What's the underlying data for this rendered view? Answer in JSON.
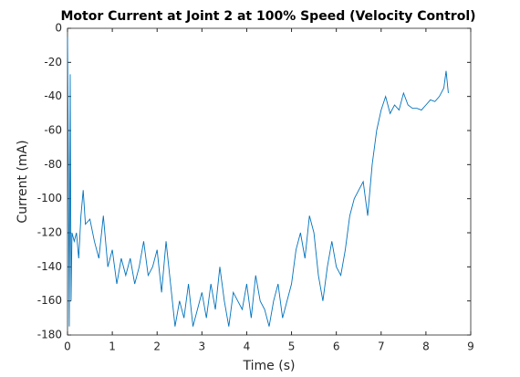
{
  "chart_data": {
    "type": "line",
    "title": "Motor Current at Joint 2 at 100% Speed (Velocity Control)",
    "x_label": "Time (s)",
    "y_label": "Current (mA)",
    "xlim": [
      0,
      9
    ],
    "xticks": [
      0,
      1,
      2,
      3,
      4,
      5,
      6,
      7,
      8,
      9
    ],
    "ylim": [
      -180,
      0
    ],
    "yticks": [
      -180,
      -160,
      -140,
      -120,
      -100,
      -80,
      -60,
      -40,
      -20,
      0
    ],
    "series": [
      {
        "name": "Current",
        "color": "#0072bd",
        "x": [
          0,
          0.02,
          0.04,
          0.06,
          0.08,
          0.1,
          0.15,
          0.2,
          0.25,
          0.3,
          0.35,
          0.4,
          0.5,
          0.6,
          0.7,
          0.8,
          0.9,
          1.0,
          1.1,
          1.2,
          1.3,
          1.4,
          1.5,
          1.6,
          1.7,
          1.8,
          1.9,
          2.0,
          2.1,
          2.2,
          2.3,
          2.4,
          2.5,
          2.6,
          2.7,
          2.8,
          2.9,
          3.0,
          3.1,
          3.2,
          3.3,
          3.4,
          3.5,
          3.6,
          3.7,
          3.8,
          3.9,
          4.0,
          4.1,
          4.2,
          4.3,
          4.4,
          4.5,
          4.6,
          4.7,
          4.8,
          4.9,
          5.0,
          5.1,
          5.2,
          5.3,
          5.4,
          5.5,
          5.6,
          5.7,
          5.8,
          5.9,
          6.0,
          6.1,
          6.2,
          6.3,
          6.4,
          6.5,
          6.6,
          6.7,
          6.8,
          6.9,
          7.0,
          7.1,
          7.2,
          7.3,
          7.4,
          7.5,
          7.6,
          7.7,
          7.8,
          7.9,
          8.0,
          8.1,
          8.2,
          8.3,
          8.4,
          8.45,
          8.5
        ],
        "values": [
          -5,
          -80,
          -175,
          -27,
          -160,
          -120,
          -125,
          -120,
          -135,
          -110,
          -95,
          -115,
          -112,
          -125,
          -135,
          -110,
          -140,
          -130,
          -150,
          -135,
          -145,
          -135,
          -150,
          -140,
          -125,
          -145,
          -140,
          -130,
          -155,
          -125,
          -150,
          -175,
          -160,
          -170,
          -150,
          -175,
          -165,
          -155,
          -170,
          -150,
          -165,
          -140,
          -160,
          -175,
          -155,
          -160,
          -165,
          -150,
          -170,
          -145,
          -160,
          -165,
          -175,
          -160,
          -150,
          -170,
          -160,
          -150,
          -130,
          -120,
          -135,
          -110,
          -120,
          -145,
          -160,
          -140,
          -125,
          -140,
          -145,
          -130,
          -110,
          -100,
          -95,
          -90,
          -110,
          -80,
          -60,
          -48,
          -40,
          -50,
          -45,
          -48,
          -38,
          -45,
          -47,
          -47,
          -48,
          -45,
          -42,
          -43,
          -40,
          -35,
          -25,
          -38
        ]
      }
    ]
  }
}
